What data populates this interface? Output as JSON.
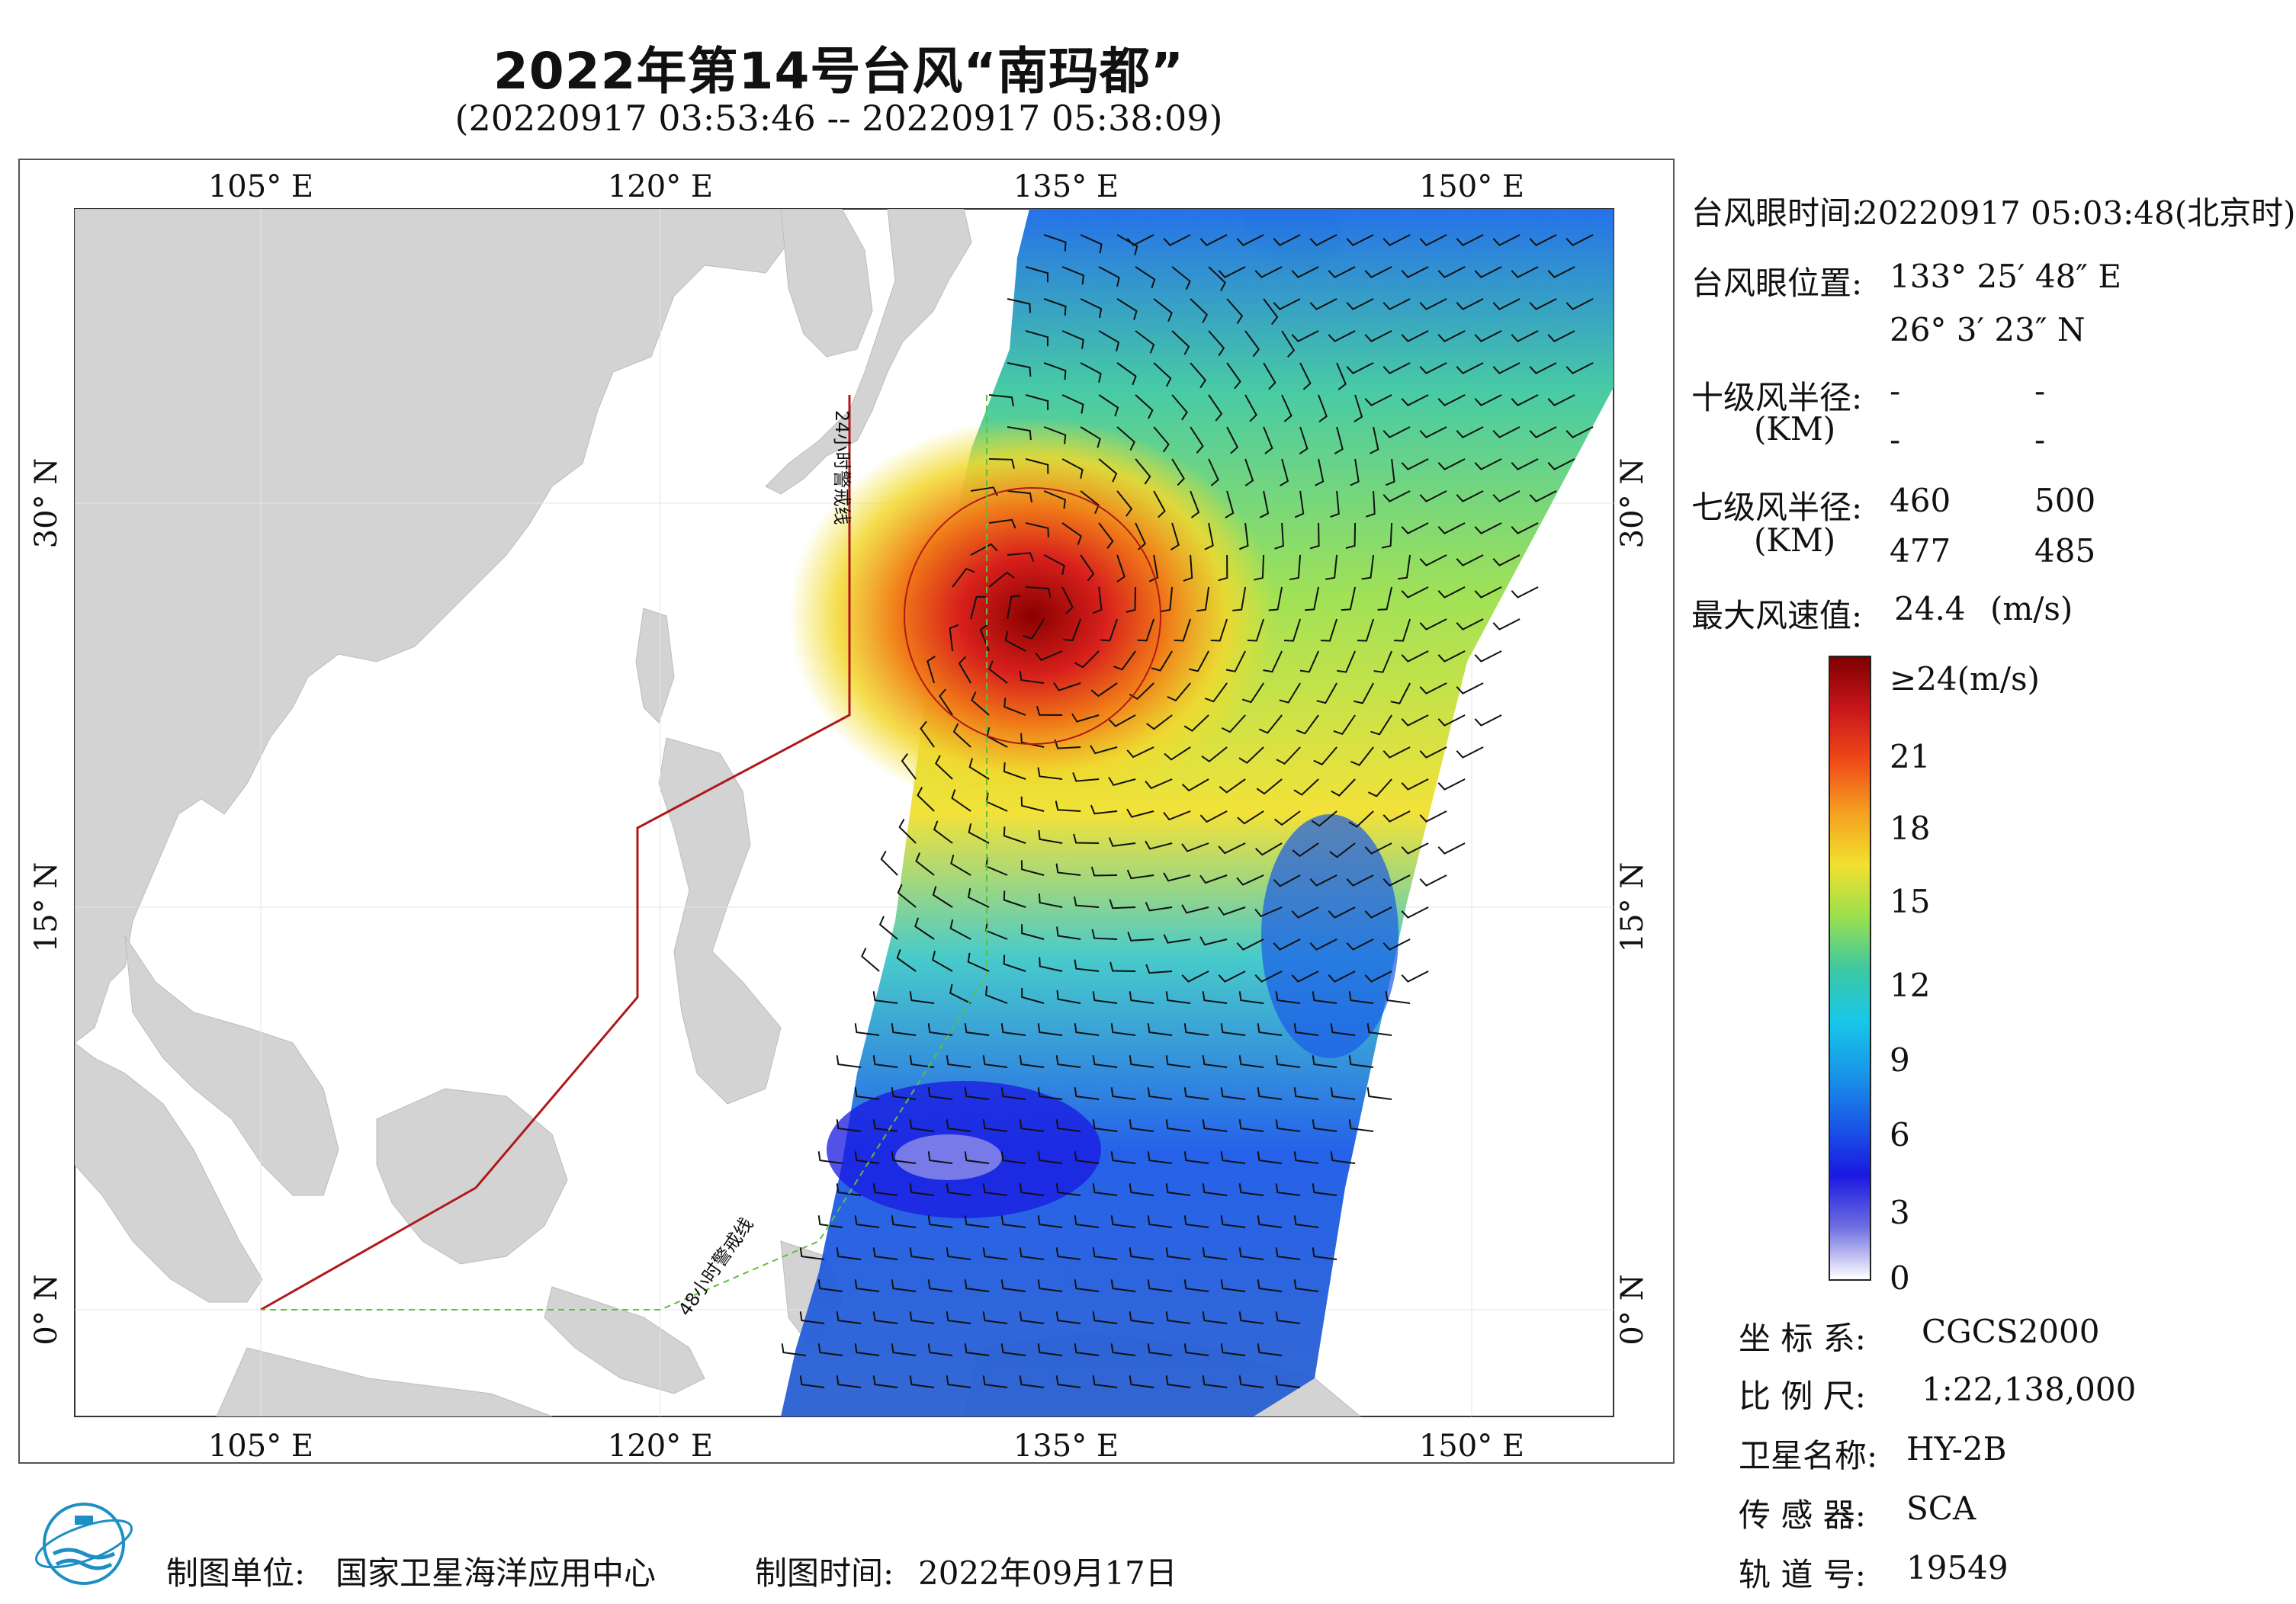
{
  "title": "2022年第14号台风“南玛都”",
  "subtitle": "(20220917 03:53:46 -- 20220917 05:38:09)",
  "map": {
    "lon_ticks": [
      "105° E",
      "120° E",
      "135° E",
      "150° E"
    ],
    "lat_ticks": [
      "30° N",
      "15° N",
      "0° N"
    ],
    "warning_24h": "24小时警戒线",
    "warning_48h": "48小时警戒线",
    "colors": {
      "land": "#d3d3d3",
      "sea": "#ffffff",
      "line24": "#b01818",
      "line48": "#5fbf3c"
    }
  },
  "info": {
    "eye_time_label": "台风眼时间:",
    "eye_time_value": "20220917 05:03:48(北京时)",
    "eye_pos_label": "台风眼位置:",
    "eye_lon": "133° 25′ 48″ E",
    "eye_lat": "26° 3′ 23″ N",
    "r10_label": "十级风半径:",
    "r10_unit": "(KM)",
    "r10_values": [
      "-",
      "-",
      "-",
      "-"
    ],
    "r7_label": "七级风半径:",
    "r7_unit": "(KM)",
    "r7_values": [
      "460",
      "500",
      "477",
      "485"
    ],
    "max_label": "最大风速值:",
    "max_value": "24.4",
    "max_unit": "(m/s)"
  },
  "colorbar": {
    "top_label": "≥24(m/s)",
    "ticks": [
      "21",
      "18",
      "15",
      "12",
      "9",
      "6",
      "3",
      "0"
    ],
    "colors": [
      "#7f0000",
      "#c8161b",
      "#f04a18",
      "#f5a020",
      "#f2e02e",
      "#9be04e",
      "#3ec8a0",
      "#18c8e8",
      "#1898e8",
      "#1a5ae8",
      "#1a18e0",
      "#6f6fe0",
      "#ffffff"
    ]
  },
  "meta": {
    "coord_label": "坐 标 系:",
    "coord_value": "CGCS2000",
    "scale_label": "比 例 尺:",
    "scale_value": "1:22,138,000",
    "sat_label": "卫星名称:",
    "sat_value": "HY-2B",
    "sensor_label": "传 感 器:",
    "sensor_value": "SCA",
    "orbit_label": "轨 道 号:",
    "orbit_value": "19549"
  },
  "footer": {
    "unit_label": "制图单位:",
    "unit_value": "国家卫星海洋应用中心",
    "time_label": "制图时间:",
    "time_value": "2022年09月17日"
  }
}
